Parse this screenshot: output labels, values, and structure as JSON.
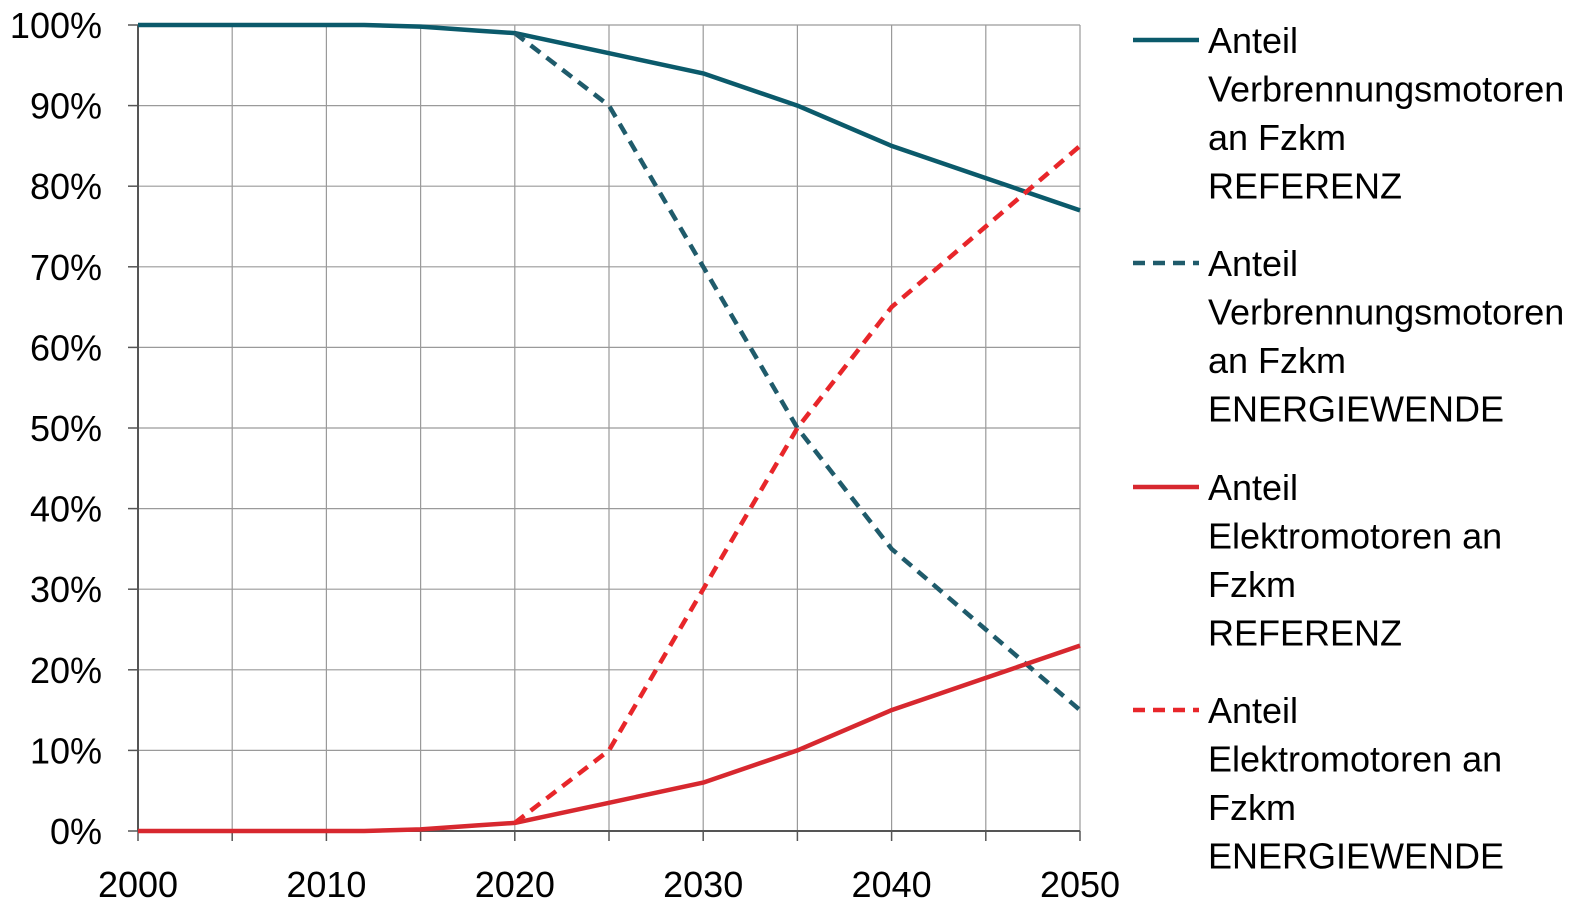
{
  "chart_data": {
    "type": "line",
    "title": "",
    "xlabel": "",
    "ylabel": "",
    "xlim": [
      2000,
      2050
    ],
    "ylim": [
      0,
      100
    ],
    "x_ticks": [
      2000,
      2010,
      2020,
      2030,
      2040,
      2050
    ],
    "x_tick_labels": [
      "2000",
      "2010",
      "2020",
      "2030",
      "2040",
      "2050"
    ],
    "x_minor_step": 5,
    "y_ticks": [
      0,
      10,
      20,
      30,
      40,
      50,
      60,
      70,
      80,
      90,
      100
    ],
    "y_tick_labels": [
      "0%",
      "10%",
      "20%",
      "30%",
      "40%",
      "50%",
      "60%",
      "70%",
      "80%",
      "90%",
      "100%"
    ],
    "grid": true,
    "legend_position": "right",
    "series": [
      {
        "name": "Anteil Verbrennungsmotoren an Fzkm REFERENZ",
        "legend_lines": [
          "Anteil",
          "Verbrennungsmotoren",
          "an Fzkm",
          "REFERENZ"
        ],
        "color": "#0b5a6b",
        "dashed": false,
        "x": [
          2000,
          2005,
          2010,
          2012,
          2015,
          2018,
          2020,
          2025,
          2027,
          2030,
          2035,
          2040,
          2045,
          2050
        ],
        "values": [
          100,
          100,
          100,
          100,
          99.8,
          99.3,
          99,
          96.5,
          95.5,
          94,
          90,
          85,
          81,
          77
        ]
      },
      {
        "name": "Anteil Verbrennungsmotoren an Fzkm ENERGIEWENDE",
        "legend_lines": [
          "Anteil",
          "Verbrennungsmotoren",
          "an Fzkm",
          "ENERGIEWENDE"
        ],
        "color": "#1f5b6b",
        "dashed": true,
        "x": [
          2020,
          2025,
          2030,
          2035,
          2040,
          2045,
          2050
        ],
        "values": [
          99,
          90,
          70,
          50,
          35,
          25,
          15
        ]
      },
      {
        "name": "Anteil Elektromotoren an Fzkm REFERENZ",
        "legend_lines": [
          "Anteil",
          "Elektromotoren an",
          "Fzkm",
          "REFERENZ"
        ],
        "color": "#d7282f",
        "dashed": false,
        "x": [
          2000,
          2005,
          2010,
          2012,
          2015,
          2018,
          2020,
          2025,
          2027,
          2030,
          2035,
          2040,
          2045,
          2050
        ],
        "values": [
          0,
          0,
          0,
          0,
          0.2,
          0.7,
          1,
          3.5,
          4.5,
          6,
          10,
          15,
          19,
          23
        ]
      },
      {
        "name": "Anteil Elektromotoren an Fzkm ENERGIEWENDE",
        "legend_lines": [
          "Anteil",
          "Elektromotoren an",
          "Fzkm",
          "ENERGIEWENDE"
        ],
        "color": "#e8262a",
        "dashed": true,
        "x": [
          2020,
          2025,
          2030,
          2035,
          2040,
          2045,
          2050
        ],
        "values": [
          1,
          10,
          30,
          50,
          65,
          75,
          85
        ]
      }
    ]
  }
}
